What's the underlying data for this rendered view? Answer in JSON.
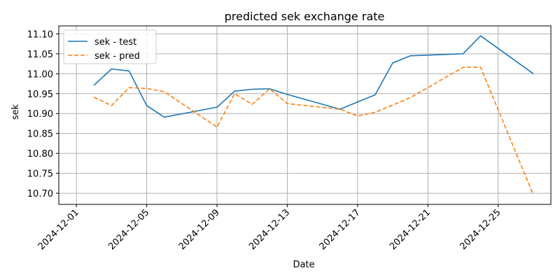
{
  "chart_data": {
    "type": "line",
    "title": "predicted sek exchange rate",
    "xlabel": "Date",
    "ylabel": "sek",
    "x_ticks": [
      "2024-12-01",
      "2024-12-05",
      "2024-12-09",
      "2024-12-13",
      "2024-12-17",
      "2024-12-21",
      "2024-12-25"
    ],
    "y_ticks": [
      "10.70",
      "10.75",
      "10.80",
      "10.85",
      "10.90",
      "10.95",
      "11.00",
      "11.05",
      "11.10"
    ],
    "xlim": [
      "2024-11-30",
      "2024-12-28"
    ],
    "ylim": [
      10.672,
      11.12
    ],
    "grid": true,
    "legend_position": "top-left",
    "series": [
      {
        "name": "sek - test",
        "color": "#1f77b4",
        "style": "solid",
        "points": [
          [
            "2024-12-02",
            10.971
          ],
          [
            "2024-12-03",
            11.012
          ],
          [
            "2024-12-04",
            11.007
          ],
          [
            "2024-12-05",
            10.92
          ],
          [
            "2024-12-06",
            10.891
          ],
          [
            "2024-12-09",
            10.916
          ],
          [
            "2024-12-10",
            10.956
          ],
          [
            "2024-12-11",
            10.961
          ],
          [
            "2024-12-12",
            10.962
          ],
          [
            "2024-12-13",
            10.948
          ],
          [
            "2024-12-16",
            10.911
          ],
          [
            "2024-12-18",
            10.947
          ],
          [
            "2024-12-19",
            11.027
          ],
          [
            "2024-12-20",
            11.045
          ],
          [
            "2024-12-23",
            11.05
          ],
          [
            "2024-12-24",
            11.095
          ],
          [
            "2024-12-27",
            11.0
          ]
        ]
      },
      {
        "name": "sek - pred",
        "color": "#ff7f0e",
        "style": "dashed",
        "points": [
          [
            "2024-12-02",
            10.941
          ],
          [
            "2024-12-03",
            10.92
          ],
          [
            "2024-12-04",
            10.965
          ],
          [
            "2024-12-05",
            10.963
          ],
          [
            "2024-12-06",
            10.955
          ],
          [
            "2024-12-09",
            10.866
          ],
          [
            "2024-12-10",
            10.95
          ],
          [
            "2024-12-11",
            10.923
          ],
          [
            "2024-12-12",
            10.962
          ],
          [
            "2024-12-13",
            10.925
          ],
          [
            "2024-12-16",
            10.911
          ],
          [
            "2024-12-17",
            10.894
          ],
          [
            "2024-12-18",
            10.903
          ],
          [
            "2024-12-20",
            10.94
          ],
          [
            "2024-12-23",
            11.016
          ],
          [
            "2024-12-24",
            11.016
          ],
          [
            "2024-12-27",
            10.696
          ]
        ]
      }
    ]
  }
}
